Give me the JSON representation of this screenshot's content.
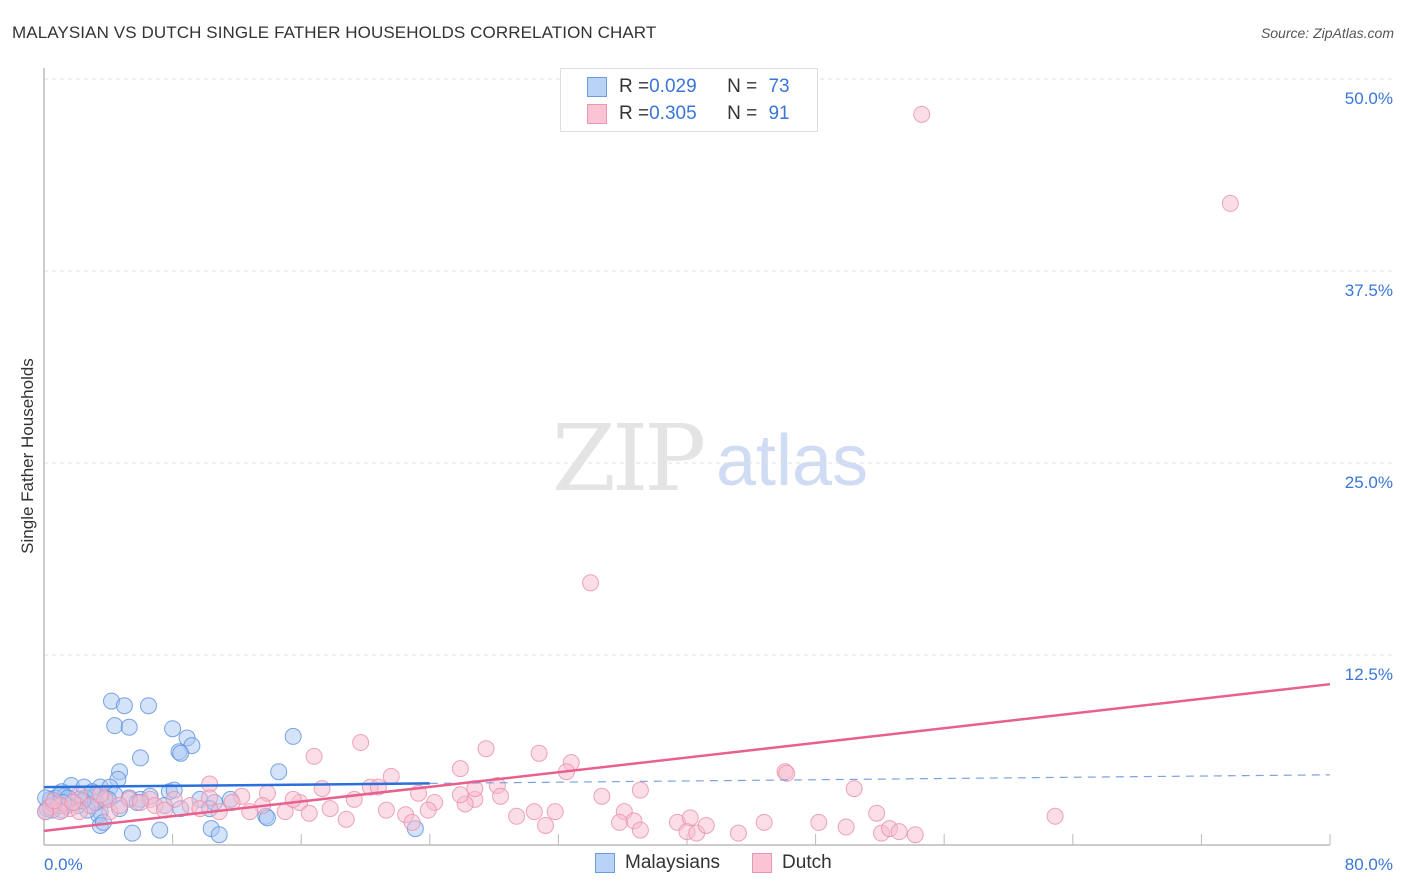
{
  "chart_data": {
    "type": "scatter",
    "title": "MALAYSIAN VS DUTCH SINGLE FATHER HOUSEHOLDS CORRELATION CHART",
    "source": "Source: ZipAtlas.com",
    "xlabel": "",
    "ylabel": "Single Father Households",
    "xlim": [
      0,
      80
    ],
    "ylim": [
      0,
      50
    ],
    "x_tick_labels": [
      "0.0%",
      "80.0%"
    ],
    "y_ticks": [
      {
        "value": 50,
        "label": "50.0%"
      },
      {
        "value": 37.5,
        "label": "37.5%"
      },
      {
        "value": 25,
        "label": "25.0%"
      },
      {
        "value": 12.5,
        "label": "12.5%"
      }
    ],
    "grid": true,
    "watermark": "ZIPatlas",
    "legend_stats": [
      {
        "r_label": "R = ",
        "r": "0.029",
        "n_label": "N = ",
        "n": "73"
      },
      {
        "r_label": "R = ",
        "r": "0.305",
        "n_label": "N = ",
        "n": "91"
      }
    ],
    "series": [
      {
        "name": "Malaysians",
        "color": "#5a90e0",
        "fill": "#a9c8f2",
        "trend": {
          "x0": 0,
          "y0": 3.9,
          "x1": 80,
          "y1": 4.7,
          "solid_until": 24
        },
        "points": [
          [
            4.2,
            9.5
          ],
          [
            5.0,
            9.2
          ],
          [
            6.5,
            9.2
          ],
          [
            4.4,
            7.9
          ],
          [
            5.3,
            7.8
          ],
          [
            8.0,
            7.7
          ],
          [
            8.9,
            7.1
          ],
          [
            9.2,
            6.6
          ],
          [
            8.4,
            6.2
          ],
          [
            8.5,
            6.1
          ],
          [
            6.0,
            5.8
          ],
          [
            15.5,
            7.2
          ],
          [
            4.7,
            4.9
          ],
          [
            14.6,
            4.9
          ],
          [
            4.6,
            4.4
          ],
          [
            1.7,
            4.0
          ],
          [
            2.5,
            3.9
          ],
          [
            3.5,
            3.9
          ],
          [
            4.1,
            3.9
          ],
          [
            7.8,
            3.6
          ],
          [
            1.0,
            3.4
          ],
          [
            0.4,
            3.1
          ],
          [
            0.7,
            3.2
          ],
          [
            1.3,
            3.3
          ],
          [
            2.2,
            3.1
          ],
          [
            3.2,
            3.4
          ],
          [
            3.8,
            3.2
          ],
          [
            5.3,
            3.2
          ],
          [
            6.0,
            3.1
          ],
          [
            9.7,
            3.1
          ],
          [
            10.6,
            2.9
          ],
          [
            8.5,
            2.5
          ],
          [
            3.5,
            2.3
          ],
          [
            3.4,
            2.1
          ],
          [
            4.7,
            2.5
          ],
          [
            3.5,
            1.4
          ],
          [
            3.7,
            1.6
          ],
          [
            7.2,
            1.1
          ],
          [
            5.5,
            0.9
          ],
          [
            10.4,
            1.2
          ],
          [
            10.9,
            0.8
          ],
          [
            13.8,
            2.0
          ],
          [
            13.9,
            1.9
          ],
          [
            23.1,
            1.2
          ],
          [
            0.7,
            2.7
          ],
          [
            0.2,
            2.5
          ],
          [
            1.1,
            2.4
          ],
          [
            2.9,
            2.7
          ],
          [
            1.9,
            2.9
          ],
          [
            2.6,
            3.2
          ],
          [
            1.6,
            3.1
          ],
          [
            0.5,
            2.4
          ],
          [
            0.9,
            2.9
          ],
          [
            1.4,
            2.7
          ],
          [
            0.1,
            2.3
          ],
          [
            6.6,
            3.3
          ],
          [
            7.5,
            2.7
          ],
          [
            10.3,
            2.5
          ],
          [
            11.6,
            3.1
          ],
          [
            4.4,
            3.4
          ],
          [
            5.8,
            2.9
          ],
          [
            2.7,
            2.4
          ],
          [
            3.2,
            2.9
          ],
          [
            2.1,
            2.7
          ],
          [
            1.1,
            3.6
          ],
          [
            1.5,
            3.2
          ],
          [
            3.0,
            3.6
          ],
          [
            4.0,
            3.1
          ],
          [
            0.6,
            2.8
          ],
          [
            0.1,
            3.2
          ],
          [
            8.1,
            3.7
          ],
          [
            1.2,
            2.9
          ],
          [
            2.4,
            3.0
          ]
        ]
      },
      {
        "name": "Dutch",
        "color": "#e890a8",
        "fill": "#f8bcd0",
        "trend": {
          "x0": 0,
          "y0": 1.05,
          "x1": 80,
          "y1": 10.6
        },
        "points": [
          [
            54.6,
            47.7
          ],
          [
            73.8,
            41.9
          ],
          [
            34.0,
            17.2
          ],
          [
            19.7,
            6.8
          ],
          [
            27.5,
            6.4
          ],
          [
            30.8,
            6.1
          ],
          [
            32.8,
            5.5
          ],
          [
            32.5,
            4.9
          ],
          [
            16.8,
            5.9
          ],
          [
            21.6,
            4.6
          ],
          [
            25.9,
            5.1
          ],
          [
            46.1,
            4.9
          ],
          [
            46.2,
            4.8
          ],
          [
            50.4,
            3.8
          ],
          [
            10.3,
            4.1
          ],
          [
            17.3,
            3.8
          ],
          [
            20.3,
            3.9
          ],
          [
            20.8,
            3.9
          ],
          [
            23.3,
            3.5
          ],
          [
            28.2,
            4.0
          ],
          [
            34.7,
            3.3
          ],
          [
            37.1,
            3.7
          ],
          [
            28.4,
            3.3
          ],
          [
            26.8,
            3.1
          ],
          [
            26.2,
            2.8
          ],
          [
            24.3,
            2.9
          ],
          [
            19.3,
            3.1
          ],
          [
            15.9,
            2.9
          ],
          [
            13.9,
            3.5
          ],
          [
            12.3,
            3.3
          ],
          [
            11.7,
            2.9
          ],
          [
            10.3,
            3.2
          ],
          [
            8.1,
            3.1
          ],
          [
            6.6,
            3.1
          ],
          [
            5.3,
            3.1
          ],
          [
            3.8,
            3.1
          ],
          [
            2.9,
            2.7
          ],
          [
            1.6,
            2.5
          ],
          [
            1.0,
            2.7
          ],
          [
            0.4,
            2.6
          ],
          [
            2.2,
            2.3
          ],
          [
            4.1,
            2.3
          ],
          [
            6.9,
            2.7
          ],
          [
            9.1,
            2.7
          ],
          [
            13.6,
            2.7
          ],
          [
            15.0,
            2.3
          ],
          [
            16.5,
            2.2
          ],
          [
            18.8,
            1.8
          ],
          [
            21.3,
            2.4
          ],
          [
            22.5,
            2.1
          ],
          [
            22.9,
            1.6
          ],
          [
            23.9,
            2.4
          ],
          [
            29.4,
            2.0
          ],
          [
            30.5,
            2.3
          ],
          [
            31.8,
            2.3
          ],
          [
            31.2,
            1.4
          ],
          [
            36.1,
            2.3
          ],
          [
            36.7,
            1.7
          ],
          [
            35.8,
            1.6
          ],
          [
            39.4,
            1.6
          ],
          [
            40.2,
            1.9
          ],
          [
            40.0,
            1.0
          ],
          [
            40.6,
            0.9
          ],
          [
            41.2,
            1.4
          ],
          [
            43.2,
            0.9
          ],
          [
            44.8,
            1.6
          ],
          [
            48.2,
            1.6
          ],
          [
            49.9,
            1.3
          ],
          [
            51.8,
            2.2
          ],
          [
            52.1,
            0.9
          ],
          [
            52.6,
            1.2
          ],
          [
            53.2,
            1.0
          ],
          [
            54.2,
            0.8
          ],
          [
            62.9,
            2.0
          ],
          [
            2.2,
            3.4
          ],
          [
            3.5,
            3.4
          ],
          [
            9.7,
            2.5
          ],
          [
            10.9,
            2.3
          ],
          [
            12.8,
            2.3
          ],
          [
            1.0,
            2.3
          ],
          [
            0.1,
            2.3
          ],
          [
            4.7,
            2.7
          ],
          [
            6.0,
            2.9
          ],
          [
            7.5,
            2.4
          ],
          [
            15.5,
            3.1
          ],
          [
            17.8,
            2.5
          ],
          [
            25.9,
            3.4
          ],
          [
            26.8,
            3.8
          ],
          [
            37.1,
            1.1
          ],
          [
            0.6,
            3.0
          ],
          [
            1.8,
            2.9
          ]
        ]
      }
    ]
  }
}
